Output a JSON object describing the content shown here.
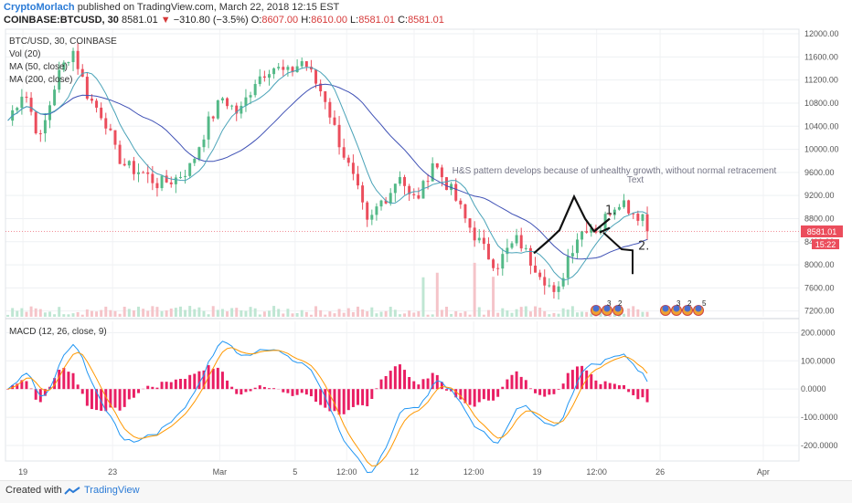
{
  "header": {
    "author": "CryptoMorlach",
    "published_text": "published on TradingView.com, March 22, 2018 12:15 EST"
  },
  "quote": {
    "symbol": "COINBASE:BTCUSD, 30",
    "last": "8581.01",
    "change_arrow": "▼",
    "change": "−310.80 (−3.5%)",
    "open_label": "O:",
    "open": "8607.00",
    "high_label": "H:",
    "high": "8610.00",
    "low_label": "L:",
    "low": "8581.01",
    "close_label": "C:",
    "close": "8581.01"
  },
  "price_badge": "8581.01",
  "timer_badge": "15:22",
  "colors": {
    "candle_up": "#53b987",
    "candle_down": "#eb4d5c",
    "ma50": "#4aa3b8",
    "ma200": "#3f51b5",
    "macd_line": "#2196f3",
    "signal_line": "#ff9800",
    "hist": "#e91e63"
  },
  "footer": {
    "created_with": "Created with",
    "brand": "TradingView"
  },
  "chart_data": [
    {
      "type": "candlestick",
      "title": "BTC/USD, 30, COINBASE",
      "legend": [
        "Vol (20)",
        "MA (50, close)",
        "MA (200, close)"
      ],
      "x_ticks": [
        "19",
        "23",
        "Mar",
        "5",
        "12:00",
        "12",
        "12:00",
        "19",
        "12:00",
        "26",
        "Apr"
      ],
      "y_ticks": [
        7200,
        7600,
        8000,
        8400,
        8800,
        9200,
        9600,
        10000,
        10400,
        10800,
        11200,
        11600,
        12000
      ],
      "y_tick_labels": [
        "7200.00",
        "7600.00",
        "8000.00",
        "8400.00",
        "8800.00",
        "9200.00",
        "9600.00",
        "10000.00",
        "10400.00",
        "10800.00",
        "11200.00",
        "11600.00",
        "12000.00"
      ],
      "ylim": [
        7100,
        12080
      ],
      "last_price": 8581.01,
      "close_path": [
        [
          0,
          10500
        ],
        [
          3,
          11050
        ],
        [
          6,
          10150
        ],
        [
          9,
          11200
        ],
        [
          12,
          11750
        ],
        [
          15,
          10900
        ],
        [
          18,
          10550
        ],
        [
          20,
          9950
        ],
        [
          22,
          9700
        ],
        [
          25,
          9600
        ],
        [
          28,
          9400
        ],
        [
          31,
          9480
        ],
        [
          34,
          9700
        ],
        [
          37,
          10400
        ],
        [
          40,
          10900
        ],
        [
          43,
          10600
        ],
        [
          46,
          11200
        ],
        [
          49,
          11450
        ],
        [
          52,
          11300
        ],
        [
          55,
          11550
        ],
        [
          57,
          11200
        ],
        [
          59,
          10900
        ],
        [
          61,
          10300
        ],
        [
          63,
          9800
        ],
        [
          65,
          9300
        ],
        [
          67,
          8650
        ],
        [
          69,
          9050
        ],
        [
          71,
          9250
        ],
        [
          73,
          9600
        ],
        [
          75,
          9100
        ],
        [
          77,
          9250
        ],
        [
          79,
          9800
        ],
        [
          81,
          9500
        ],
        [
          83,
          9200
        ],
        [
          85,
          8800
        ],
        [
          87,
          8500
        ],
        [
          89,
          8200
        ],
        [
          91,
          8000
        ],
        [
          93,
          8250
        ],
        [
          95,
          8450
        ],
        [
          97,
          8100
        ],
        [
          99,
          7900
        ],
        [
          101,
          7600
        ],
        [
          102,
          7350
        ],
        [
          104,
          8100
        ],
        [
          106,
          8500
        ],
        [
          108,
          8700
        ],
        [
          110,
          8600
        ],
        [
          112,
          8950
        ],
        [
          114,
          9150
        ],
        [
          115,
          9050
        ],
        [
          117,
          8850
        ],
        [
          118,
          8900
        ],
        [
          119,
          8750
        ]
      ],
      "annotation": "H&S pattern develops because of unhealthy growth, without normal retracement",
      "annotation_subtext": "Text",
      "drawing": [
        [
          600,
          8400
        ],
        [
          628,
          9180
        ],
        [
          650,
          8580
        ],
        [
          667,
          8800
        ]
      ],
      "projection": [
        [
          660,
          8560
        ],
        [
          680,
          8270
        ],
        [
          692,
          8250
        ],
        [
          692,
          7840
        ]
      ],
      "labels": [
        "1.",
        "2."
      ],
      "events": [
        "3",
        "2",
        "3",
        "2",
        "5"
      ]
    },
    {
      "type": "macd",
      "title": "MACD (12, 26, close, 9)",
      "y_ticks": [
        -200,
        -100,
        0,
        100,
        200
      ],
      "y_tick_labels": [
        "-200.0000",
        "-100.0000",
        "0.0000",
        "100.0000",
        "200.0000"
      ],
      "ylim": [
        -255,
        240
      ]
    }
  ]
}
